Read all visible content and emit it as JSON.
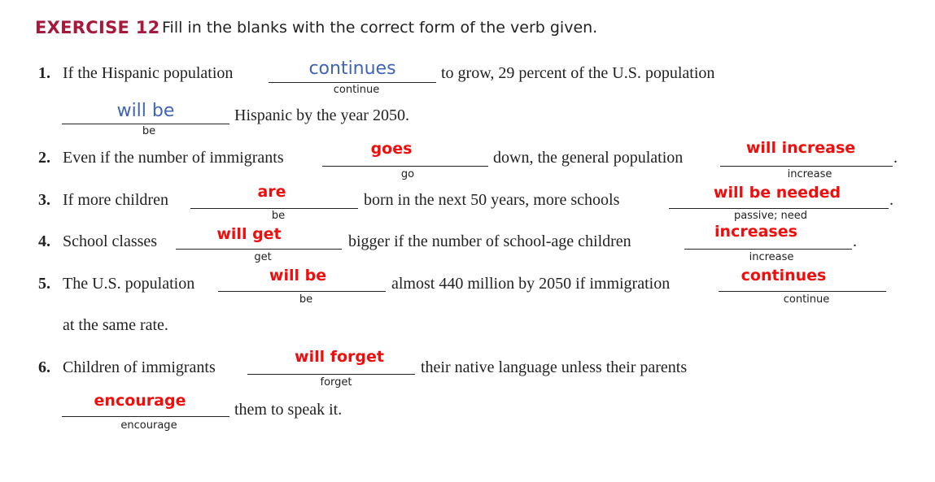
{
  "header": {
    "exercise": "EXERCISE 12",
    "instruction": "Fill in the blanks with the correct form of the verb given."
  },
  "items": [
    {
      "number": "1.",
      "t1": "If the Hispanic population",
      "a1": "continues",
      "h1": "continue",
      "t2": "to grow, 29 percent of the U.S. population",
      "a2": "will be",
      "h2": "be",
      "t3": "Hispanic by the year 2050."
    },
    {
      "number": "2.",
      "t1": "Even if the number of immigrants",
      "a1": "goes",
      "h1": "go",
      "t2": "down, the general population",
      "a2": "will increase",
      "h2": "increase",
      "end": "."
    },
    {
      "number": "3.",
      "t1": "If more children",
      "a1": "are",
      "h1": "be",
      "t2": "born in the next 50 years, more schools",
      "a2": "will be needed",
      "h2": "passive; need",
      "end": "."
    },
    {
      "number": "4.",
      "t1": "School classes",
      "a1": "will get",
      "h1": "get",
      "t2": "bigger if the number of school-age children",
      "a2": "increases",
      "h2": "increase",
      "end": "."
    },
    {
      "number": "5.",
      "t1": "The U.S. population",
      "a1": "will be",
      "h1": "be",
      "t2": "almost 440 million by 2050 if immigration",
      "a2": "continues",
      "h2": "continue",
      "t3": "at the same rate."
    },
    {
      "number": "6.",
      "t1": "Children of immigrants",
      "a1": "will forget",
      "h1": "forget",
      "t2": "their native language unless their parents",
      "a2": "encourage",
      "h2": "encourage",
      "t3": "them to speak it."
    }
  ]
}
